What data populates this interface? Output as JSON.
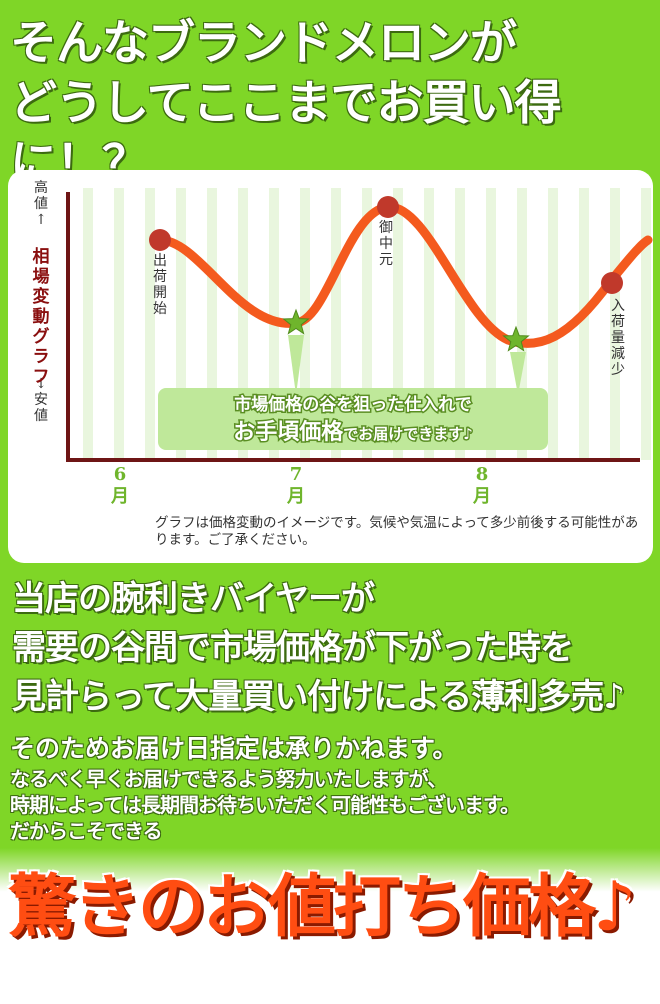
{
  "headline": {
    "line1": "そんなブランドメロンが",
    "line2": "どうしてここまでお買い得に！？"
  },
  "graph": {
    "y_top": "高値↑",
    "y_title": "相場変動グラフ",
    "y_bottom": "↓安値",
    "months": [
      "6月",
      "7月",
      "8月"
    ],
    "points": [
      {
        "label": "出荷開始",
        "shape": "circle"
      },
      {
        "label": "",
        "shape": "star"
      },
      {
        "label": "御中元",
        "shape": "circle"
      },
      {
        "label": "",
        "shape": "star"
      },
      {
        "label": "入荷量減少",
        "shape": "circle"
      }
    ],
    "callout_line1": "市場価格の谷を狙った仕入れで",
    "callout_line2_bold": "お手頃価格",
    "callout_line2_rest": "でお届けできます♪",
    "colors": {
      "curve": "#f45a1e",
      "circle": "#c0392b",
      "star": "#6fb52c",
      "grid": "#c6e7b0",
      "axis": "#6e1515"
    }
  },
  "note": "グラフは価格変動のイメージです。気候や気温によって多少前後する可能性があります。ご了承ください。",
  "section2": {
    "line1": "当店の腕利きバイヤーが",
    "line2": "需要の谷間で市場価格が下がった時を",
    "line3": "見計らって大量買い付けによる薄利多売♪"
  },
  "section3": {
    "line1": "そのためお届け日指定は承りかねます。",
    "line2": "なるべく早くお届けできるよう努力いたしますが、",
    "line3": "時期によっては長期間お待ちいただく可能性もございます。",
    "line4": "だからこそできる"
  },
  "final": "驚きのお値打ち価格♪"
}
